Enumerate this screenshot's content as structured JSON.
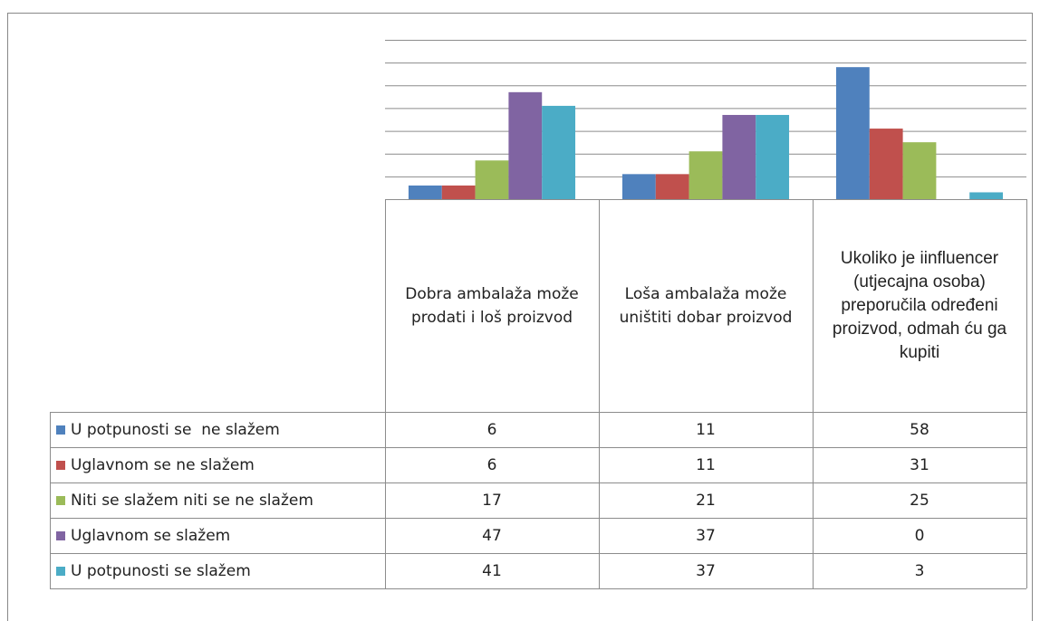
{
  "chart_data": {
    "type": "bar",
    "categories": [
      "Dobra ambalaža može prodati i loš proizvod",
      "Loša ambalaža može uništiti dobar proizvod",
      "Ukoliko je iinfluencer (utjecajna osoba) preporučila određeni proizvod, odmah ću ga kupiti"
    ],
    "series": [
      {
        "name": "U potpunosti se  ne slažem",
        "color": "#4f81bd",
        "values": [
          6,
          11,
          58
        ]
      },
      {
        "name": "Uglavnom se ne slažem",
        "color": "#c0504d",
        "values": [
          6,
          11,
          31
        ]
      },
      {
        "name": "Niti se slažem niti se ne slažem",
        "color": "#9bbb59",
        "values": [
          17,
          21,
          25
        ]
      },
      {
        "name": "Uglavnom se slažem",
        "color": "#8064a2",
        "values": [
          47,
          37,
          0
        ]
      },
      {
        "name": "U potpunosti se slažem",
        "color": "#4bacc6",
        "values": [
          41,
          37,
          3
        ]
      }
    ],
    "ylim": [
      0,
      70
    ],
    "yticks": [
      0,
      10,
      20,
      30,
      40,
      50,
      60,
      70
    ],
    "grid": true
  }
}
